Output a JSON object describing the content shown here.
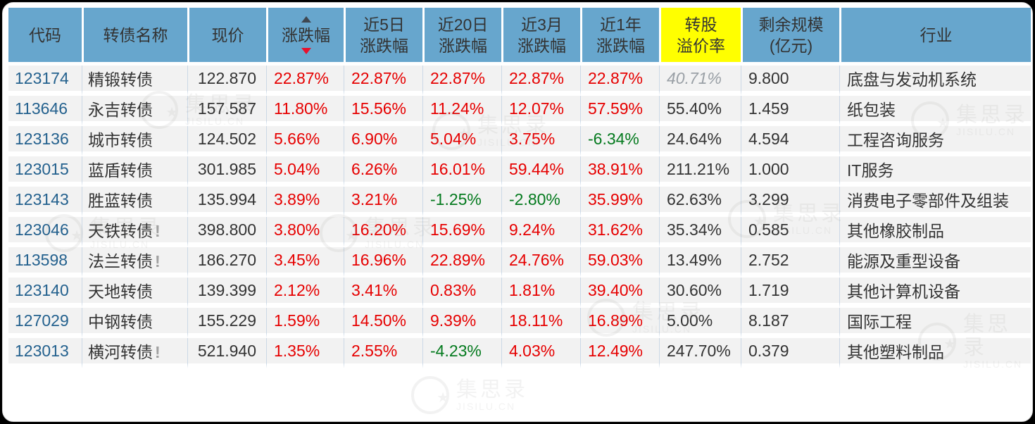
{
  "colors": {
    "header-bg": "#67a6cd",
    "highlight": "#ffff00",
    "up": "#e60000",
    "down": "#047a1e",
    "link": "#24618e",
    "cell-bg": "#f2f2f2",
    "grid": "#cbd8e6"
  },
  "watermark": {
    "text": "集思录",
    "subtext": "JISILU.CN"
  },
  "table": {
    "sort": {
      "column": "涨跌幅",
      "direction": "desc"
    },
    "columns": [
      {
        "label": "代码",
        "line2": ""
      },
      {
        "label": "转债名称",
        "line2": ""
      },
      {
        "label": "现价",
        "line2": ""
      },
      {
        "label": "涨跌幅",
        "line2": "",
        "sortable": true,
        "sorted": "desc"
      },
      {
        "label": "近5日",
        "line2": "涨跌幅"
      },
      {
        "label": "近20日",
        "line2": "涨跌幅"
      },
      {
        "label": "近3月",
        "line2": "涨跌幅"
      },
      {
        "label": "近1年",
        "line2": "涨跌幅"
      },
      {
        "label": "转股",
        "line2": "溢价率",
        "highlight": true
      },
      {
        "label": "剩余规模",
        "line2": "(亿元)"
      },
      {
        "label": "行业",
        "line2": ""
      }
    ],
    "rows": [
      {
        "code": "123174",
        "name": "精锻转债",
        "alert": false,
        "price": "122.870",
        "chg": "22.87%",
        "chg5d": "22.87%",
        "chg20d": "22.87%",
        "chg3m": "22.87%",
        "chg1y": "22.87%",
        "premium": "40.71%",
        "premium_muted": true,
        "size": "9.800",
        "industry": "底盘与发动机系统"
      },
      {
        "code": "113646",
        "name": "永吉转债",
        "alert": false,
        "price": "157.587",
        "chg": "11.80%",
        "chg5d": "15.56%",
        "chg20d": "11.24%",
        "chg3m": "12.07%",
        "chg1y": "57.59%",
        "premium": "55.40%",
        "premium_muted": false,
        "size": "1.459",
        "industry": "纸包装"
      },
      {
        "code": "123136",
        "name": "城市转债",
        "alert": false,
        "price": "124.502",
        "chg": "5.66%",
        "chg5d": "6.90%",
        "chg20d": "5.04%",
        "chg3m": "3.75%",
        "chg1y": "-6.34%",
        "premium": "24.64%",
        "premium_muted": false,
        "size": "4.594",
        "industry": "工程咨询服务"
      },
      {
        "code": "123015",
        "name": "蓝盾转债",
        "alert": false,
        "price": "301.985",
        "chg": "5.04%",
        "chg5d": "6.26%",
        "chg20d": "16.01%",
        "chg3m": "59.44%",
        "chg1y": "38.91%",
        "premium": "211.21%",
        "premium_muted": false,
        "size": "1.000",
        "industry": "IT服务"
      },
      {
        "code": "123143",
        "name": "胜蓝转债",
        "alert": false,
        "price": "135.994",
        "chg": "3.89%",
        "chg5d": "3.21%",
        "chg20d": "-1.25%",
        "chg3m": "-2.80%",
        "chg1y": "35.99%",
        "premium": "62.63%",
        "premium_muted": false,
        "size": "3.299",
        "industry": "消费电子零部件及组装"
      },
      {
        "code": "123046",
        "name": "天铁转债",
        "alert": true,
        "price": "398.800",
        "chg": "3.80%",
        "chg5d": "16.20%",
        "chg20d": "15.69%",
        "chg3m": "9.24%",
        "chg1y": "31.62%",
        "premium": "35.34%",
        "premium_muted": false,
        "size": "0.585",
        "industry": "其他橡胶制品"
      },
      {
        "code": "113598",
        "name": "法兰转债",
        "alert": true,
        "price": "186.270",
        "chg": "3.45%",
        "chg5d": "16.96%",
        "chg20d": "22.89%",
        "chg3m": "24.76%",
        "chg1y": "59.03%",
        "premium": "13.49%",
        "premium_muted": false,
        "size": "2.752",
        "industry": "能源及重型设备"
      },
      {
        "code": "123140",
        "name": "天地转债",
        "alert": false,
        "price": "139.399",
        "chg": "2.12%",
        "chg5d": "3.41%",
        "chg20d": "0.83%",
        "chg3m": "1.81%",
        "chg1y": "39.40%",
        "premium": "30.60%",
        "premium_muted": false,
        "size": "1.719",
        "industry": "其他计算机设备"
      },
      {
        "code": "127029",
        "name": "中钢转债",
        "alert": false,
        "price": "155.229",
        "chg": "1.59%",
        "chg5d": "14.50%",
        "chg20d": "9.39%",
        "chg3m": "18.11%",
        "chg1y": "16.89%",
        "premium": "5.00%",
        "premium_muted": false,
        "size": "8.187",
        "industry": "国际工程"
      },
      {
        "code": "123013",
        "name": "横河转债",
        "alert": true,
        "price": "521.940",
        "chg": "1.35%",
        "chg5d": "2.55%",
        "chg20d": "-4.23%",
        "chg3m": "4.03%",
        "chg1y": "12.49%",
        "premium": "247.70%",
        "premium_muted": false,
        "size": "0.379",
        "industry": "其他塑料制品"
      }
    ]
  }
}
